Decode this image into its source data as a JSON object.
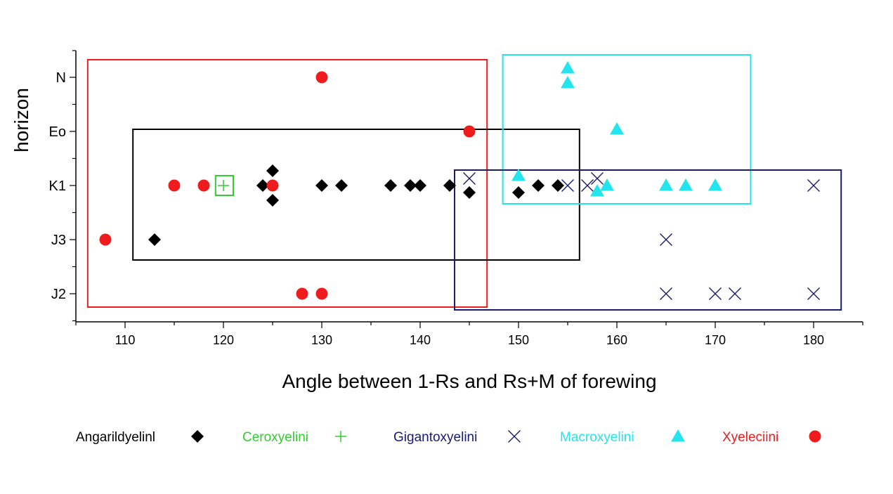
{
  "chart_data": {
    "type": "scatter",
    "title": "",
    "xlabel": "Angle between 1-Rs and Rs+M of forewing",
    "ylabel": "horizon",
    "xlim": [
      105,
      185
    ],
    "xticks": [
      110,
      120,
      130,
      140,
      150,
      160,
      170,
      180
    ],
    "y_categories": [
      "J2",
      "J3",
      "K1",
      "Eo",
      "N"
    ],
    "grid": false,
    "legend_position": "bottom",
    "series": [
      {
        "name": "Angarildyelinl",
        "marker": "diamond",
        "color": "#000000",
        "points": [
          {
            "x": 113,
            "y": "J3"
          },
          {
            "x": 124,
            "y": "K1"
          },
          {
            "x": 125,
            "y": "K1"
          },
          {
            "x": 125,
            "y": "K1"
          },
          {
            "x": 130,
            "y": "K1"
          },
          {
            "x": 132,
            "y": "K1"
          },
          {
            "x": 137,
            "y": "K1"
          },
          {
            "x": 139,
            "y": "K1"
          },
          {
            "x": 140,
            "y": "K1"
          },
          {
            "x": 143,
            "y": "K1"
          },
          {
            "x": 145,
            "y": "K1"
          },
          {
            "x": 150,
            "y": "K1"
          },
          {
            "x": 152,
            "y": "K1"
          },
          {
            "x": 154,
            "y": "K1"
          }
        ]
      },
      {
        "name": "Ceroxyelini",
        "marker": "plus",
        "color": "#33cc33",
        "points": [
          {
            "x": 120,
            "y": "K1"
          }
        ]
      },
      {
        "name": "Gigantoxyelini",
        "marker": "x",
        "color": "#1a1a6e",
        "points": [
          {
            "x": 145,
            "y": "K1"
          },
          {
            "x": 155,
            "y": "K1"
          },
          {
            "x": 157,
            "y": "K1"
          },
          {
            "x": 158,
            "y": "K1"
          },
          {
            "x": 180,
            "y": "K1"
          },
          {
            "x": 165,
            "y": "J3"
          },
          {
            "x": 165,
            "y": "J2"
          },
          {
            "x": 170,
            "y": "J2"
          },
          {
            "x": 172,
            "y": "J2"
          },
          {
            "x": 180,
            "y": "J2"
          }
        ]
      },
      {
        "name": "Macroxyelini",
        "marker": "triangle",
        "color": "#22e5ee",
        "points": [
          {
            "x": 155,
            "y": "N"
          },
          {
            "x": 155,
            "y": "N"
          },
          {
            "x": 160,
            "y": "Eo"
          },
          {
            "x": 150,
            "y": "K1"
          },
          {
            "x": 158,
            "y": "K1"
          },
          {
            "x": 159,
            "y": "K1"
          },
          {
            "x": 165,
            "y": "K1"
          },
          {
            "x": 167,
            "y": "K1"
          },
          {
            "x": 170,
            "y": "K1"
          }
        ]
      },
      {
        "name": "Xyeleciini",
        "marker": "circle",
        "color": "#ee1c1c",
        "points": [
          {
            "x": 130,
            "y": "N"
          },
          {
            "x": 145,
            "y": "Eo"
          },
          {
            "x": 115,
            "y": "K1"
          },
          {
            "x": 118,
            "y": "K1"
          },
          {
            "x": 125,
            "y": "K1"
          },
          {
            "x": 108,
            "y": "J3"
          },
          {
            "x": 128,
            "y": "J2"
          },
          {
            "x": 130,
            "y": "J2"
          }
        ]
      }
    ],
    "boxes": [
      {
        "series": "Xyeleciini",
        "color": "#ee1c1c",
        "x_min": 106.2,
        "x_max": 146.8,
        "y_min": "J2",
        "y_max": "N"
      },
      {
        "series": "Angarildyelinl",
        "color": "#000000",
        "x_min": 110.8,
        "x_max": 156.2,
        "y_min": "J3",
        "y_max": "Eo"
      },
      {
        "series": "Macroxyelini",
        "color": "#22e5ee",
        "x_min": 148.4,
        "x_max": 173.6,
        "y_min": "K1",
        "y_max": "N"
      },
      {
        "series": "Gigantoxyelini",
        "color": "#1a1a6e",
        "x_min": 143.5,
        "x_max": 182.8,
        "y_min": "J2",
        "y_max": "K1"
      },
      {
        "series": "Ceroxyelini",
        "color": "#33cc33",
        "x_min": 119.2,
        "x_max": 121.0,
        "y_min": "K1",
        "y_max": "K1"
      }
    ]
  }
}
